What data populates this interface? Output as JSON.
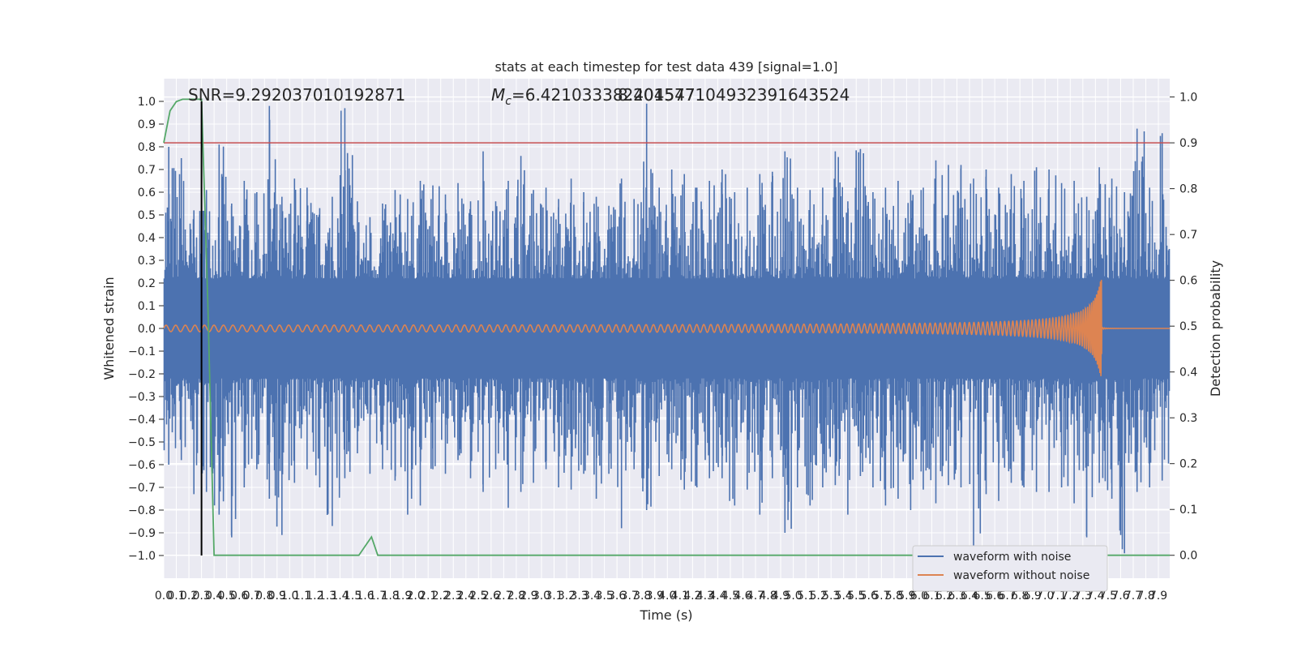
{
  "chart_data": {
    "type": "line",
    "title": "stats at each timestep for test data 439 [signal=1.0]",
    "xlabel": "Time (s)",
    "ylabel_left": "Whitened strain",
    "ylabel_right": "Detection probability",
    "xlim": [
      0.0,
      7.99
    ],
    "ylim_left": [
      -1.1,
      1.1
    ],
    "ylim_right": [
      -0.05,
      1.04
    ],
    "grid": true,
    "background": "#eaeaf2",
    "x_ticks": [
      "0.0",
      "0.1",
      "0.2",
      "0.3",
      "0.4",
      "0.5",
      "0.6",
      "0.7",
      "0.8",
      "0.9",
      "1.0",
      "1.1",
      "1.2",
      "1.3",
      "1.4",
      "1.5",
      "1.6",
      "1.7",
      "1.8",
      "1.9",
      "2.0",
      "2.1",
      "2.2",
      "2.3",
      "2.4",
      "2.5",
      "2.6",
      "2.7",
      "2.8",
      "2.9",
      "3.0",
      "3.1",
      "3.2",
      "3.3",
      "3.4",
      "3.5",
      "3.6",
      "3.7",
      "3.8",
      "3.9",
      "4.0",
      "4.1",
      "4.2",
      "4.3",
      "4.4",
      "4.5",
      "4.6",
      "4.7",
      "4.8",
      "4.9",
      "5.0",
      "5.1",
      "5.2",
      "5.3",
      "5.4",
      "5.5",
      "5.6",
      "5.7",
      "5.8",
      "5.9",
      "6.0",
      "6.1",
      "6.2",
      "6.3",
      "6.4",
      "6.5",
      "6.6",
      "6.7",
      "6.8",
      "6.9",
      "7.0",
      "7.1",
      "7.2",
      "7.3",
      "7.4",
      "7.5",
      "7.6",
      "7.7",
      "7.8",
      "7.9"
    ],
    "y_ticks_left": [
      "1.0",
      "0.9",
      "0.8",
      "0.7",
      "0.6",
      "0.5",
      "0.4",
      "0.3",
      "0.2",
      "0.1",
      "0.0",
      "−0.1",
      "−0.2",
      "−0.3",
      "−0.4",
      "−0.5",
      "−0.6",
      "−0.7",
      "−0.8",
      "−0.9",
      "−1.0"
    ],
    "y_ticks_right": [
      "1.0",
      "0.9",
      "0.8",
      "0.7",
      "0.6",
      "0.5",
      "0.4",
      "0.3",
      "0.2",
      "0.1",
      "0.0"
    ],
    "annotations": {
      "snr": "SNR=9.292037010192871",
      "mc_symbol": "M",
      "mc_sub": "c",
      "mc_value": "=6.421033382404547",
      "overlap": "8.2015771049323916435​24"
    },
    "threshold": {
      "value": 0.9,
      "axis": "right",
      "color": "#c44e52"
    },
    "marker_time": {
      "x": 0.3,
      "color": "#000000"
    },
    "series": [
      {
        "name": "waveform with noise",
        "color": "#4c72b0",
        "axis": "left",
        "envelope_pos": [
          0.8,
          0.75,
          0.52,
          0.61,
          0.81,
          0.55,
          0.65,
          0.6,
          0.98,
          0.58,
          0.66,
          0.62,
          0.53,
          0.58,
          0.97,
          0.56,
          0.49,
          0.55,
          0.61,
          0.57,
          0.65,
          0.63,
          0.59,
          0.64,
          0.56,
          0.78,
          0.56,
          0.65,
          0.76,
          0.61,
          0.62,
          0.57,
          0.66,
          0.6,
          0.58,
          0.54,
          0.66,
          0.57,
          0.99,
          0.62,
          0.7,
          0.68,
          0.62,
          0.65,
          0.7,
          0.6,
          0.62,
          0.68,
          0.69,
          0.78,
          0.62,
          0.61,
          0.62,
          0.78,
          0.56,
          0.79,
          0.6,
          0.62,
          0.65,
          0.61,
          0.62,
          0.74,
          0.72,
          0.72,
          0.66,
          0.7,
          0.62,
          0.68,
          0.65,
          0.71,
          0.7,
          0.64,
          0.65,
          0.58,
          0.71,
          0.66,
          0.6,
          0.88,
          0.62,
          0.86
        ],
        "envelope_neg": [
          -0.6,
          -0.58,
          -0.73,
          -0.72,
          -0.82,
          -0.92,
          -0.7,
          -0.62,
          -0.75,
          -0.91,
          -0.68,
          -0.62,
          -0.7,
          -0.87,
          -0.66,
          -0.55,
          -0.64,
          -0.62,
          -0.67,
          -0.82,
          -0.78,
          -0.62,
          -0.64,
          -0.58,
          -0.66,
          -0.72,
          -0.62,
          -0.79,
          -0.72,
          -0.68,
          -0.62,
          -0.7,
          -0.71,
          -0.64,
          -0.75,
          -0.64,
          -0.88,
          -0.62,
          -0.8,
          -0.65,
          -0.62,
          -0.71,
          -0.7,
          -0.66,
          -0.66,
          -0.78,
          -0.71,
          -0.82,
          -0.66,
          -0.9,
          -0.7,
          -0.78,
          -0.7,
          -0.69,
          -0.82,
          -0.65,
          -0.7,
          -0.78,
          -0.75,
          -0.8,
          -0.71,
          -0.77,
          -0.69,
          -0.7,
          -0.97,
          -0.73,
          -0.76,
          -0.68,
          -0.7,
          -0.72,
          -0.72,
          -0.7,
          -0.77,
          -0.92,
          -0.68,
          -0.75,
          -0.99,
          -0.72,
          -0.7,
          -0.67
        ]
      },
      {
        "name": "waveform without noise",
        "color": "#dd8452",
        "axis": "left",
        "chirp": {
          "start": 0.0,
          "merger": 7.45,
          "end": 7.99,
          "amp_start": 0.012,
          "amp_peak": 0.24,
          "freq_start": 13
        }
      },
      {
        "name": "detection probability",
        "color": "#55a868",
        "axis": "right",
        "x": [
          0.0,
          0.05,
          0.1,
          0.15,
          0.2,
          0.25,
          0.3,
          0.35,
          0.4,
          0.45,
          0.5,
          1.5,
          1.55,
          1.6,
          1.65,
          1.7,
          1.75,
          1.8,
          7.99
        ],
        "y": [
          0.9,
          0.97,
          0.99,
          0.995,
          0.995,
          0.995,
          0.995,
          0.55,
          0.0,
          0.0,
          0.0,
          0.0,
          0.0,
          0.02,
          0.04,
          0.0,
          0.0,
          0.0,
          0.0
        ]
      }
    ],
    "legend": {
      "placement": "lower-right",
      "entries": [
        "waveform with noise",
        "waveform without noise"
      ]
    }
  }
}
